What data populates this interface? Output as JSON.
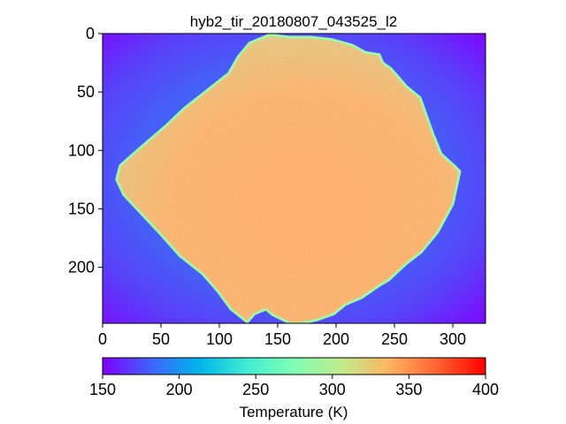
{
  "chart_data": {
    "type": "heatmap",
    "title": "hyb2_tir_20180807_043525_l2",
    "xlabel": "",
    "ylabel": "",
    "xlim": [
      0,
      328
    ],
    "ylim": [
      248,
      0
    ],
    "x_ticks": [
      0,
      50,
      100,
      150,
      200,
      250,
      300
    ],
    "y_ticks": [
      0,
      50,
      100,
      150,
      200
    ],
    "colormap": "rainbow",
    "colorbar": {
      "label": "Temperature (K)",
      "range": [
        150,
        400
      ],
      "ticks": [
        150,
        200,
        250,
        300,
        350,
        400
      ],
      "orientation": "horizontal",
      "placement": "bottom"
    },
    "background_temperature_range": [
      150,
      225
    ],
    "object_temperature_range": [
      300,
      360
    ],
    "object_outline": [
      [
        143,
        1
      ],
      [
        160,
        3
      ],
      [
        178,
        3
      ],
      [
        196,
        5
      ],
      [
        214,
        10
      ],
      [
        225,
        16
      ],
      [
        237,
        18
      ],
      [
        240,
        25
      ],
      [
        247,
        30
      ],
      [
        260,
        45
      ],
      [
        272,
        55
      ],
      [
        277,
        69
      ],
      [
        283,
        86
      ],
      [
        290,
        103
      ],
      [
        300,
        112
      ],
      [
        306,
        118
      ],
      [
        300,
        146
      ],
      [
        287,
        170
      ],
      [
        273,
        187
      ],
      [
        260,
        197
      ],
      [
        245,
        211
      ],
      [
        238,
        215
      ],
      [
        222,
        226
      ],
      [
        208,
        232
      ],
      [
        198,
        240
      ],
      [
        184,
        245
      ],
      [
        171,
        248
      ],
      [
        161,
        248
      ],
      [
        146,
        241
      ],
      [
        140,
        236
      ],
      [
        130,
        240
      ],
      [
        124,
        247
      ],
      [
        110,
        236
      ],
      [
        99,
        221
      ],
      [
        86,
        206
      ],
      [
        66,
        190
      ],
      [
        50,
        172
      ],
      [
        34,
        155
      ],
      [
        18,
        138
      ],
      [
        12,
        125
      ],
      [
        15,
        113
      ],
      [
        32,
        98
      ],
      [
        53,
        80
      ],
      [
        70,
        64
      ],
      [
        84,
        53
      ],
      [
        94,
        45
      ],
      [
        108,
        34
      ],
      [
        116,
        20
      ],
      [
        126,
        8
      ]
    ]
  }
}
